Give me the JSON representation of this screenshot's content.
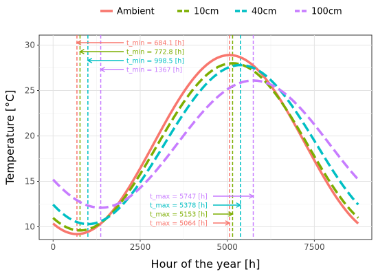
{
  "chart_data": {
    "type": "line",
    "xlabel": "Hour of the year [h]",
    "ylabel": "Temperature [°C]",
    "xlim": [
      -400,
      9150
    ],
    "ylim": [
      8.6,
      31.1
    ],
    "xticks": [
      0,
      2500,
      5000,
      7500
    ],
    "xtick_labels": [
      "0",
      "2500",
      "5000",
      "7500"
    ],
    "yticks": [
      10,
      15,
      20,
      25,
      30
    ],
    "ytick_labels": [
      "10",
      "15",
      "20",
      "25",
      "30"
    ],
    "grid": true,
    "legend_position": "top",
    "series": [
      {
        "name": "Ambient",
        "color": "#F8766D",
        "style": "solid",
        "x": [
          0,
          684.1,
          5064,
          8760
        ],
        "y": [
          10.4,
          9.2,
          28.9,
          10.4
        ]
      },
      {
        "name": "10cm",
        "color": "#7CAE00",
        "style": "dashed",
        "x": [
          0,
          772.8,
          5153,
          8760
        ],
        "y": [
          11.3,
          9.6,
          28.0,
          11.5
        ]
      },
      {
        "name": "40cm",
        "color": "#00BFC4",
        "style": "dashed",
        "x": [
          0,
          998.5,
          5378,
          8760
        ],
        "y": [
          12.4,
          10.3,
          27.8,
          12.3
        ]
      },
      {
        "name": "100cm",
        "color": "#C77CFF",
        "style": "dashed",
        "x": [
          0,
          1367,
          5747,
          8760
        ],
        "y": [
          15.1,
          12.1,
          26.1,
          15.4
        ]
      }
    ],
    "annotations": {
      "t_min": [
        {
          "series": "Ambient",
          "x": 684.1,
          "text": "t_min =  684.1 [h]",
          "color": "#F8766D"
        },
        {
          "series": "10cm",
          "x": 772.8,
          "text": "t_min =  772.8 [h]",
          "color": "#7CAE00"
        },
        {
          "series": "40cm",
          "x": 998.5,
          "text": "t_min =  998.5 [h]",
          "color": "#00BFC4"
        },
        {
          "series": "100cm",
          "x": 1367,
          "text": "t_min =  1367 [h]",
          "color": "#C77CFF"
        }
      ],
      "t_max": [
        {
          "series": "100cm",
          "x": 5747,
          "text": "t_max =  5747 [h]",
          "color": "#C77CFF"
        },
        {
          "series": "40cm",
          "x": 5378,
          "text": "t_max =  5378 [h]",
          "color": "#00BFC4"
        },
        {
          "series": "10cm",
          "x": 5153,
          "text": "t_max =  5153 [h]",
          "color": "#7CAE00"
        },
        {
          "series": "Ambient",
          "x": 5064,
          "text": "t_max =  5064 [h]",
          "color": "#F8766D"
        }
      ]
    }
  }
}
